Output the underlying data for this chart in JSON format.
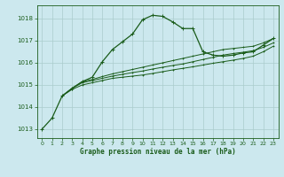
{
  "title": "Graphe pression niveau de la mer (hPa)",
  "bg_color": "#cce8ee",
  "grid_color": "#aacccc",
  "line_color": "#1a5c1a",
  "xlim": [
    -0.5,
    23.5
  ],
  "ylim": [
    1012.6,
    1018.6
  ],
  "yticks": [
    1013,
    1014,
    1015,
    1016,
    1017,
    1018
  ],
  "xticks": [
    0,
    1,
    2,
    3,
    4,
    5,
    6,
    7,
    8,
    9,
    10,
    11,
    12,
    13,
    14,
    15,
    16,
    17,
    18,
    19,
    20,
    21,
    22,
    23
  ],
  "series1_x": [
    0,
    1,
    2,
    3,
    4,
    5,
    6,
    7,
    8,
    9,
    10,
    11,
    12,
    13,
    14,
    15,
    16,
    17,
    18,
    19,
    20,
    21,
    22,
    23
  ],
  "series1_y": [
    1013.0,
    1013.5,
    1014.5,
    1014.85,
    1015.15,
    1015.35,
    1016.05,
    1016.6,
    1016.95,
    1017.3,
    1017.95,
    1018.15,
    1018.1,
    1017.85,
    1017.55,
    1017.55,
    1016.5,
    1016.35,
    1016.3,
    1016.35,
    1016.45,
    1016.5,
    1016.8,
    1017.1
  ],
  "series2_x": [
    2,
    3,
    4,
    5,
    6,
    7,
    8,
    9,
    10,
    11,
    12,
    13,
    14,
    15,
    16,
    17,
    18,
    19,
    20,
    21,
    22,
    23
  ],
  "series2_y": [
    1014.5,
    1014.8,
    1015.0,
    1015.1,
    1015.2,
    1015.3,
    1015.35,
    1015.4,
    1015.45,
    1015.52,
    1015.6,
    1015.68,
    1015.75,
    1015.82,
    1015.9,
    1015.98,
    1016.05,
    1016.12,
    1016.2,
    1016.3,
    1016.5,
    1016.75
  ],
  "series3_x": [
    2,
    3,
    4,
    5,
    6,
    7,
    8,
    9,
    10,
    11,
    12,
    13,
    14,
    15,
    16,
    17,
    18,
    19,
    20,
    21,
    22,
    23
  ],
  "series3_y": [
    1014.5,
    1014.85,
    1015.15,
    1015.25,
    1015.38,
    1015.5,
    1015.6,
    1015.7,
    1015.8,
    1015.9,
    1016.0,
    1016.1,
    1016.2,
    1016.3,
    1016.4,
    1016.5,
    1016.6,
    1016.65,
    1016.7,
    1016.75,
    1016.9,
    1017.1
  ],
  "series4_x": [
    2,
    3,
    4,
    5,
    6,
    7,
    8,
    9,
    10,
    11,
    12,
    13,
    14,
    15,
    16,
    17,
    18,
    19,
    20,
    21,
    22,
    23
  ],
  "series4_y": [
    1014.5,
    1014.85,
    1015.1,
    1015.2,
    1015.3,
    1015.4,
    1015.48,
    1015.56,
    1015.63,
    1015.72,
    1015.8,
    1015.88,
    1015.95,
    1016.05,
    1016.15,
    1016.25,
    1016.35,
    1016.42,
    1016.48,
    1016.55,
    1016.7,
    1016.9
  ]
}
